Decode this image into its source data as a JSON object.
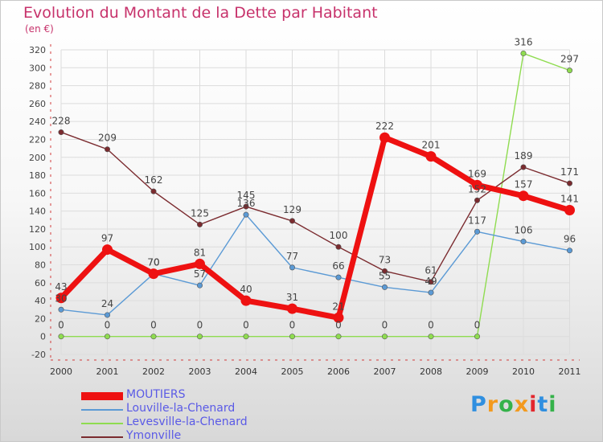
{
  "chart_data": {
    "type": "line",
    "title": "Evolution du Montant de la Dette par Habitant",
    "unit": "(en €)",
    "categories": [
      "2000",
      "2001",
      "2002",
      "2003",
      "2004",
      "2005",
      "2006",
      "2007",
      "2008",
      "2009",
      "2010",
      "2011"
    ],
    "ylim": [
      -20,
      320
    ],
    "yticks": [
      -20,
      0,
      20,
      40,
      60,
      80,
      100,
      120,
      140,
      160,
      180,
      200,
      220,
      240,
      260,
      280,
      300,
      320
    ],
    "grid": true,
    "legend_position": "bottom-left",
    "series": [
      {
        "name": "MOUTIERS",
        "color": "#ee1111",
        "values": [
          43,
          97,
          70,
          81,
          40,
          31,
          21,
          222,
          201,
          169,
          157,
          141
        ]
      },
      {
        "name": "Louville-la-Chenard",
        "color": "#5b9ad5",
        "values": [
          30,
          24,
          70,
          57,
          136,
          77,
          66,
          55,
          49,
          117,
          106,
          96
        ]
      },
      {
        "name": "Levesville-la-Chenard",
        "color": "#8fdc50",
        "values": [
          0,
          0,
          0,
          0,
          0,
          0,
          0,
          0,
          0,
          0,
          316,
          297
        ]
      },
      {
        "name": "Ymonville",
        "color": "#7b2b2f",
        "values": [
          228,
          209,
          162,
          125,
          145,
          129,
          100,
          73,
          61,
          152,
          189,
          171
        ]
      }
    ]
  },
  "logo": {
    "letters": [
      "P",
      "r",
      "o",
      "x",
      "i",
      "t",
      "i"
    ],
    "colors": [
      "#2f8fe0",
      "#f39a1e",
      "#35b24a",
      "#f39a1e",
      "#e3262d",
      "#2f8fe0",
      "#35b24a"
    ]
  }
}
